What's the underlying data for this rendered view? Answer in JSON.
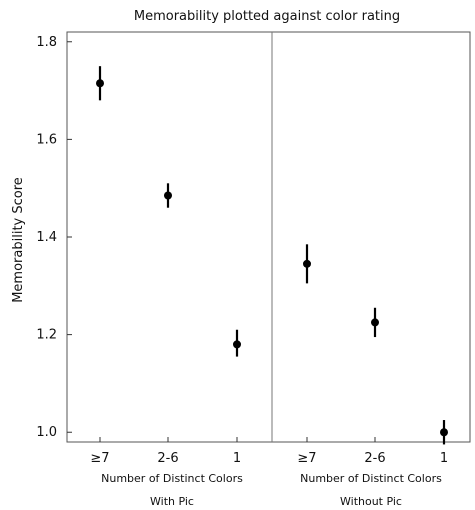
{
  "chart_data": {
    "type": "scatter",
    "title": "Memorability plotted against color rating",
    "ylabel": "Memorability Score",
    "ylim": [
      0.98,
      1.82
    ],
    "y_ticks": [
      1.0,
      1.2,
      1.4,
      1.6,
      1.8
    ],
    "y_tick_labels": [
      "1.0",
      "1.2",
      "1.4",
      "1.6",
      "1.8"
    ],
    "grid": false,
    "panels": [
      {
        "xlabel": "Number of Distinct Colors",
        "panel_label": "With Pic",
        "categories": [
          "≥7",
          "2-6",
          "1"
        ],
        "values": [
          1.715,
          1.485,
          1.18
        ],
        "error_low": [
          1.68,
          1.46,
          1.155
        ],
        "error_high": [
          1.75,
          1.51,
          1.21
        ]
      },
      {
        "xlabel": "Number of Distinct Colors",
        "panel_label": "Without Pic",
        "categories": [
          "≥7",
          "2-6",
          "1"
        ],
        "values": [
          1.345,
          1.225,
          1.0
        ],
        "error_low": [
          1.305,
          1.195,
          0.975
        ],
        "error_high": [
          1.385,
          1.255,
          1.025
        ]
      }
    ]
  }
}
